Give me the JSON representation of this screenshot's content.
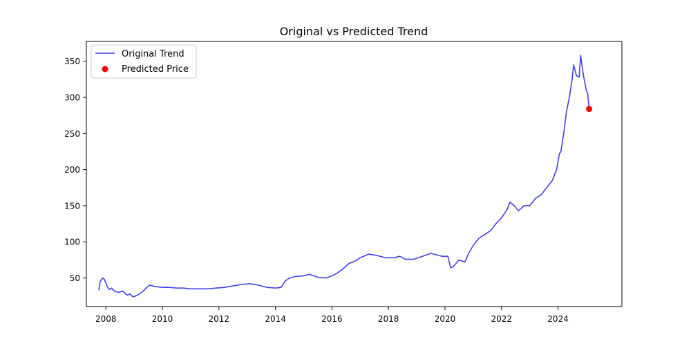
{
  "chart_data": {
    "type": "line",
    "title": "Original vs Predicted Trend",
    "xlabel": "",
    "ylabel": "",
    "xlim": [
      2007.31,
      2026.26
    ],
    "ylim": [
      10.4,
      377.4
    ],
    "xticks": [
      2008,
      2010,
      2012,
      2014,
      2016,
      2018,
      2020,
      2022,
      2024
    ],
    "xtick_labels": [
      "2008",
      "2010",
      "2012",
      "2014",
      "2016",
      "2018",
      "2020",
      "2022",
      "2024"
    ],
    "yticks": [
      50,
      100,
      150,
      200,
      250,
      300,
      350
    ],
    "ytick_labels": [
      "50",
      "100",
      "150",
      "200",
      "250",
      "300",
      "350"
    ],
    "grid": false,
    "legend": {
      "position": "top-left",
      "entries": [
        {
          "label": "Original Trend",
          "marker": "line",
          "color": "#4040e8"
        },
        {
          "label": "Predicted Price",
          "marker": "dot",
          "color": "#ff0000"
        }
      ]
    },
    "series": [
      {
        "name": "Original Trend",
        "kind": "line",
        "color": "#4040e8",
        "x": [
          2007.75,
          2007.8,
          2007.88,
          2007.95,
          2008.05,
          2008.12,
          2008.2,
          2008.3,
          2008.45,
          2008.6,
          2008.75,
          2008.85,
          2008.95,
          2009.05,
          2009.15,
          2009.3,
          2009.45,
          2009.55,
          2009.75,
          2010.0,
          2010.25,
          2010.5,
          2010.75,
          2011.0,
          2011.3,
          2011.6,
          2011.9,
          2012.2,
          2012.5,
          2012.8,
          2013.1,
          2013.4,
          2013.7,
          2014.0,
          2014.2,
          2014.35,
          2014.5,
          2014.7,
          2015.0,
          2015.2,
          2015.5,
          2015.8,
          2016.0,
          2016.2,
          2016.4,
          2016.6,
          2016.8,
          2017.0,
          2017.3,
          2017.6,
          2017.9,
          2018.2,
          2018.4,
          2018.6,
          2018.9,
          2019.2,
          2019.5,
          2019.7,
          2019.9,
          2020.1,
          2020.2,
          2020.3,
          2020.5,
          2020.7,
          2020.85,
          2021.0,
          2021.2,
          2021.4,
          2021.6,
          2021.8,
          2022.0,
          2022.2,
          2022.3,
          2022.45,
          2022.6,
          2022.8,
          2023.0,
          2023.2,
          2023.4,
          2023.6,
          2023.8,
          2023.95,
          2024.05,
          2024.1,
          2024.2,
          2024.3,
          2024.4,
          2024.5,
          2024.55,
          2024.65,
          2024.75,
          2024.8,
          2024.9,
          2025.0,
          2025.05,
          2025.1
        ],
        "y": [
          33,
          45,
          50,
          48,
          38,
          34,
          36,
          32,
          30,
          32,
          26,
          28,
          24,
          25,
          27,
          31,
          37,
          40,
          38,
          37,
          37,
          36,
          36,
          35,
          35,
          35,
          36,
          37,
          39,
          41,
          42,
          40,
          37,
          36,
          37,
          46,
          50,
          52,
          53,
          55,
          51,
          50,
          53,
          57,
          63,
          70,
          73,
          78,
          83,
          81,
          78,
          78,
          80,
          76,
          76,
          80,
          84,
          82,
          80,
          80,
          64,
          66,
          75,
          72,
          85,
          95,
          105,
          110,
          115,
          125,
          133,
          145,
          155,
          150,
          143,
          150,
          150,
          160,
          165,
          175,
          185,
          200,
          222,
          225,
          250,
          280,
          300,
          325,
          345,
          330,
          328,
          358,
          330,
          310,
          305,
          284
        ]
      },
      {
        "name": "Predicted Price",
        "kind": "scatter",
        "color": "#ff0000",
        "x": [
          2025.1
        ],
        "y": [
          284
        ]
      }
    ]
  }
}
